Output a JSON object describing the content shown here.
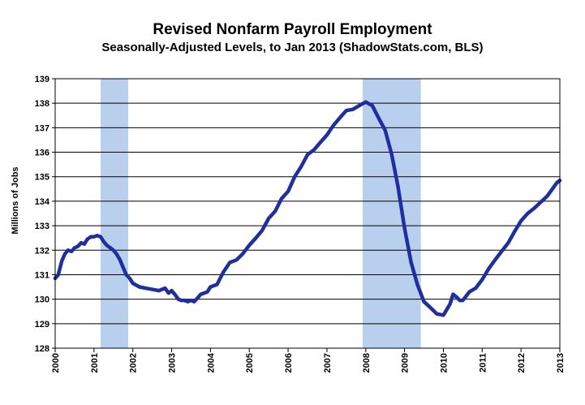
{
  "chart_data": {
    "type": "line",
    "title": "Revised Nonfarm Payroll Employment",
    "subtitle": "Seasonally-Adjusted Levels, to Jan 2013 (ShadowStats.com, BLS)",
    "ylabel": "Millions of Jobs",
    "xlabel": "",
    "ylim": [
      128,
      139
    ],
    "xlim": [
      2000.0,
      2013.0
    ],
    "y_ticks": [
      128,
      129,
      130,
      131,
      132,
      133,
      134,
      135,
      136,
      137,
      138,
      139
    ],
    "x_ticks": [
      "2000",
      "2001",
      "2002",
      "2003",
      "2004",
      "2005",
      "2006",
      "2007",
      "2008",
      "2009",
      "2010",
      "2011",
      "2012",
      "2013"
    ],
    "grid": true,
    "line_color": "#1f2f9e",
    "recession_color": "#b8d0ee",
    "recessions": [
      [
        2001.17,
        2001.88
      ],
      [
        2007.92,
        2009.42
      ]
    ],
    "series": [
      {
        "x": [
          2000.0,
          2000.08,
          2000.17,
          2000.25,
          2000.33,
          2000.42,
          2000.5,
          2000.58,
          2000.67,
          2000.75,
          2000.83,
          2000.92,
          2001.0,
          2001.08,
          2001.17,
          2001.25,
          2001.33,
          2001.42,
          2001.5,
          2001.58,
          2001.67,
          2001.75,
          2001.83,
          2001.92,
          2002.0,
          2002.17,
          2002.33,
          2002.5,
          2002.67,
          2002.83,
          2002.92,
          2003.0,
          2003.08,
          2003.17,
          2003.25,
          2003.33,
          2003.42,
          2003.5,
          2003.58,
          2003.67,
          2003.75,
          2003.92,
          2004.0,
          2004.17,
          2004.33,
          2004.5,
          2004.67,
          2004.83,
          2005.0,
          2005.17,
          2005.33,
          2005.5,
          2005.67,
          2005.83,
          2006.0,
          2006.17,
          2006.33,
          2006.5,
          2006.67,
          2006.83,
          2007.0,
          2007.17,
          2007.33,
          2007.5,
          2007.67,
          2007.83,
          2008.0,
          2008.17,
          2008.33,
          2008.5,
          2008.67,
          2008.83,
          2009.0,
          2009.17,
          2009.33,
          2009.5,
          2009.67,
          2009.83,
          2010.0,
          2010.17,
          2010.25,
          2010.33,
          2010.42,
          2010.5,
          2010.67,
          2010.83,
          2011.0,
          2011.17,
          2011.33,
          2011.5,
          2011.67,
          2011.83,
          2012.0,
          2012.17,
          2012.33,
          2012.5,
          2012.67,
          2012.83,
          2012.92,
          2013.0
        ],
        "values": [
          130.85,
          131.0,
          131.55,
          131.85,
          132.0,
          131.95,
          132.1,
          132.15,
          132.3,
          132.25,
          132.45,
          132.55,
          132.55,
          132.6,
          132.55,
          132.35,
          132.2,
          132.1,
          132.0,
          131.85,
          131.6,
          131.3,
          131.0,
          130.85,
          130.65,
          130.5,
          130.45,
          130.4,
          130.35,
          130.45,
          130.25,
          130.35,
          130.2,
          130.0,
          129.95,
          129.95,
          129.9,
          129.95,
          129.9,
          130.05,
          130.2,
          130.3,
          130.5,
          130.6,
          131.1,
          131.5,
          131.6,
          131.85,
          132.2,
          132.5,
          132.8,
          133.3,
          133.6,
          134.1,
          134.4,
          135.0,
          135.4,
          135.9,
          136.1,
          136.4,
          136.7,
          137.1,
          137.4,
          137.7,
          137.75,
          137.9,
          138.05,
          137.9,
          137.4,
          136.9,
          135.9,
          134.6,
          132.9,
          131.5,
          130.6,
          129.9,
          129.65,
          129.4,
          129.35,
          129.8,
          130.2,
          130.1,
          129.95,
          129.95,
          130.3,
          130.45,
          130.8,
          131.25,
          131.6,
          131.95,
          132.3,
          132.75,
          133.2,
          133.5,
          133.7,
          133.95,
          134.2,
          134.55,
          134.75,
          134.85
        ]
      }
    ]
  }
}
